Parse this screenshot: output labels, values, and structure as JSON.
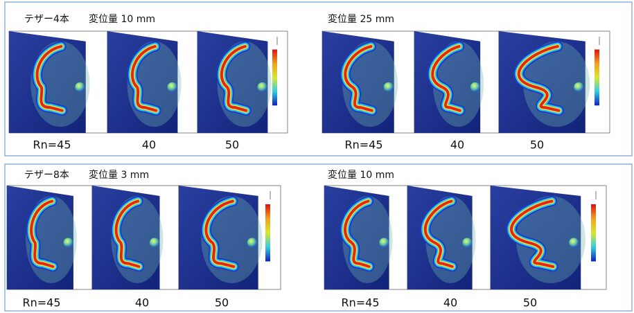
{
  "rows": [
    {
      "tether": "テザー4本",
      "groups": [
        {
          "title": "変位量 10 mm",
          "labels": [
            "Rn=45",
            "40",
            "50"
          ]
        },
        {
          "title": "変位量 25 mm",
          "labels": [
            "Rn=45",
            "40",
            "50"
          ]
        }
      ]
    },
    {
      "tether": "テザー8本",
      "groups": [
        {
          "title": "変位量 3 mm",
          "labels": [
            "Rn=45",
            "40",
            "50"
          ]
        },
        {
          "title": "変位量 10 mm",
          "labels": [
            "Rn=45",
            "40",
            "50"
          ]
        }
      ]
    }
  ]
}
